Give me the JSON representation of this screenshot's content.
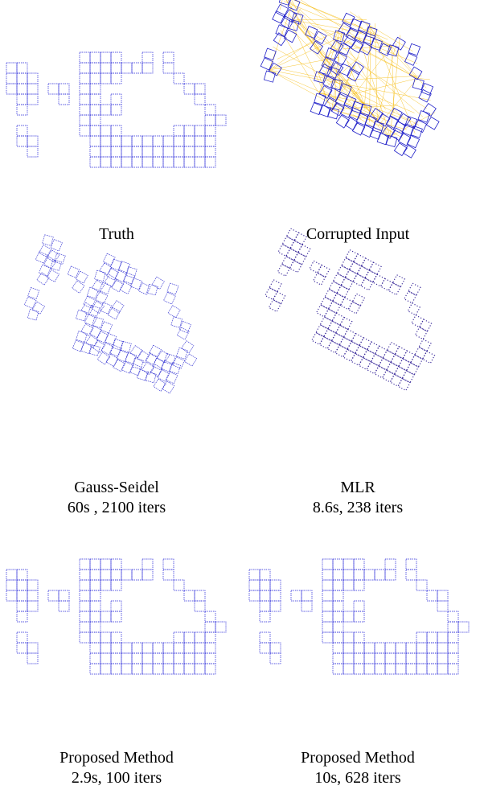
{
  "panels": [
    {
      "caption": [
        "Truth"
      ]
    },
    {
      "caption": [
        "Corrupted Input"
      ]
    },
    {
      "caption": [
        "Gauss-Seidel",
        "60s , 2100 iters"
      ]
    },
    {
      "caption": [
        "MLR",
        "8.6s, 238 iters"
      ]
    },
    {
      "caption": [
        "Proposed Method",
        "2.9s, 100 iters"
      ]
    },
    {
      "caption": [
        "Proposed Method",
        "10s, 628 iters"
      ]
    }
  ]
}
